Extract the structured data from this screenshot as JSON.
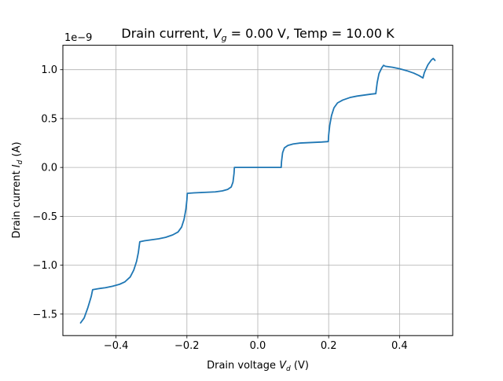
{
  "chart_data": {
    "type": "line",
    "title": {
      "prefix": "Drain current, ",
      "vg_symbol": "V",
      "vg_sub": "g",
      "suffix": " = 0.00 V, Temp = 10.00 K"
    },
    "xlabel": {
      "prefix": "Drain voltage ",
      "symbol": "V",
      "sub": "d",
      "suffix": " (V)"
    },
    "ylabel": {
      "prefix": "Drain current ",
      "symbol": "I",
      "sub": "d",
      "suffix": " (A)"
    },
    "y_offset_label": "1e−9",
    "y_scale_factor": 1e-09,
    "xlim": [
      -0.55,
      0.55
    ],
    "ylim": [
      -1.72,
      1.25
    ],
    "grid": true,
    "color": "#1f77b4",
    "x_ticks": [
      {
        "value": -0.4,
        "label": "−0.4"
      },
      {
        "value": -0.2,
        "label": "−0.2"
      },
      {
        "value": 0.0,
        "label": "0.0"
      },
      {
        "value": 0.2,
        "label": "0.2"
      },
      {
        "value": 0.4,
        "label": "0.4"
      }
    ],
    "y_ticks": [
      {
        "value": -1.5,
        "label": "−1.5"
      },
      {
        "value": -1.0,
        "label": "−1.0"
      },
      {
        "value": -0.5,
        "label": "−0.5"
      },
      {
        "value": 0.0,
        "label": "0.0"
      },
      {
        "value": 0.5,
        "label": "0.5"
      },
      {
        "value": 1.0,
        "label": "1.0"
      }
    ],
    "series": [
      {
        "points": [
          [
            -0.5,
            -1.59
          ],
          [
            -0.49,
            -1.54
          ],
          [
            -0.48,
            -1.44
          ],
          [
            -0.47,
            -1.32
          ],
          [
            -0.466,
            -1.25
          ],
          [
            -0.45,
            -1.24
          ],
          [
            -0.43,
            -1.23
          ],
          [
            -0.41,
            -1.215
          ],
          [
            -0.39,
            -1.195
          ],
          [
            -0.375,
            -1.17
          ],
          [
            -0.36,
            -1.12
          ],
          [
            -0.35,
            -1.05
          ],
          [
            -0.342,
            -0.96
          ],
          [
            -0.337,
            -0.87
          ],
          [
            -0.333,
            -0.76
          ],
          [
            -0.32,
            -0.75
          ],
          [
            -0.3,
            -0.74
          ],
          [
            -0.28,
            -0.73
          ],
          [
            -0.26,
            -0.715
          ],
          [
            -0.24,
            -0.69
          ],
          [
            -0.225,
            -0.66
          ],
          [
            -0.215,
            -0.61
          ],
          [
            -0.208,
            -0.53
          ],
          [
            -0.203,
            -0.43
          ],
          [
            -0.2,
            -0.33
          ],
          [
            -0.199,
            -0.265
          ],
          [
            -0.18,
            -0.26
          ],
          [
            -0.15,
            -0.255
          ],
          [
            -0.12,
            -0.25
          ],
          [
            -0.1,
            -0.24
          ],
          [
            -0.085,
            -0.225
          ],
          [
            -0.075,
            -0.2
          ],
          [
            -0.07,
            -0.15
          ],
          [
            -0.067,
            -0.06
          ],
          [
            -0.066,
            0.0
          ],
          [
            -0.03,
            0.0
          ],
          [
            0.0,
            0.0
          ],
          [
            0.03,
            0.0
          ],
          [
            0.066,
            0.0
          ],
          [
            0.067,
            0.06
          ],
          [
            0.07,
            0.15
          ],
          [
            0.075,
            0.2
          ],
          [
            0.085,
            0.225
          ],
          [
            0.1,
            0.24
          ],
          [
            0.12,
            0.25
          ],
          [
            0.15,
            0.255
          ],
          [
            0.18,
            0.26
          ],
          [
            0.199,
            0.265
          ],
          [
            0.2,
            0.33
          ],
          [
            0.203,
            0.43
          ],
          [
            0.208,
            0.53
          ],
          [
            0.215,
            0.61
          ],
          [
            0.225,
            0.66
          ],
          [
            0.24,
            0.69
          ],
          [
            0.26,
            0.715
          ],
          [
            0.28,
            0.73
          ],
          [
            0.3,
            0.74
          ],
          [
            0.32,
            0.75
          ],
          [
            0.333,
            0.755
          ],
          [
            0.337,
            0.87
          ],
          [
            0.342,
            0.96
          ],
          [
            0.35,
            1.02
          ],
          [
            0.355,
            1.045
          ],
          [
            0.36,
            1.035
          ],
          [
            0.38,
            1.025
          ],
          [
            0.4,
            1.01
          ],
          [
            0.42,
            0.99
          ],
          [
            0.44,
            0.965
          ],
          [
            0.455,
            0.94
          ],
          [
            0.466,
            0.915
          ],
          [
            0.47,
            0.97
          ],
          [
            0.48,
            1.05
          ],
          [
            0.49,
            1.1
          ],
          [
            0.495,
            1.115
          ],
          [
            0.5,
            1.095
          ]
        ]
      }
    ]
  }
}
